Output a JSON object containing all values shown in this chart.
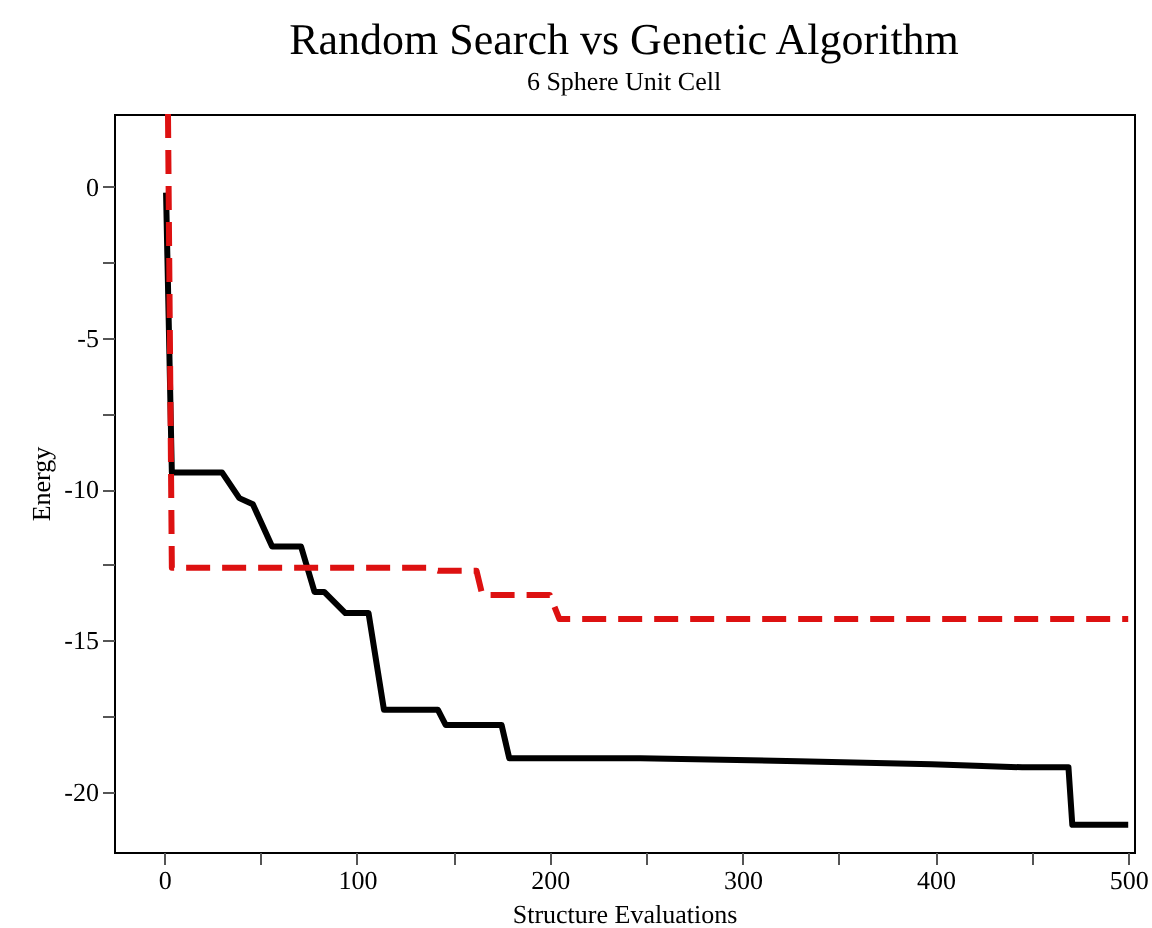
{
  "chart_data": {
    "type": "line",
    "title": "Random Search vs Genetic Algorithm",
    "subtitle": "6 Sphere Unit Cell",
    "xlabel": "Structure Evaluations",
    "ylabel": "Energy",
    "xlim": [
      -26,
      503
    ],
    "ylim": [
      -22,
      2.4
    ],
    "xticks": [
      0,
      {
        "value": 50,
        "label": null
      },
      100,
      {
        "value": 150,
        "label": null
      },
      200,
      {
        "value": 250,
        "label": null
      },
      300,
      {
        "value": 350,
        "label": null
      },
      400,
      {
        "value": 450,
        "label": null
      },
      500
    ],
    "yticks": [
      {
        "value": -20,
        "label": "-20"
      },
      {
        "value": -17.5,
        "label": null
      },
      {
        "value": -15,
        "label": "-15"
      },
      {
        "value": -12.5,
        "label": null
      },
      {
        "value": -10,
        "label": "-10"
      },
      {
        "value": -7.5,
        "label": null
      },
      {
        "value": -5,
        "label": "-5"
      },
      {
        "value": -2.5,
        "label": null
      },
      0
    ],
    "grid": false,
    "series": [
      {
        "color": "#000000",
        "line_style": "solid",
        "x": [
          1,
          4,
          30,
          39,
          46,
          56,
          71,
          78,
          83,
          94,
          106,
          114,
          142,
          146,
          175,
          179,
          247,
          329,
          398,
          445,
          469,
          471,
          500
        ],
        "values": [
          -0.2,
          -9.45,
          -9.45,
          -10.3,
          -10.5,
          -11.9,
          -11.9,
          -13.4,
          -13.4,
          -14.1,
          -14.1,
          -17.3,
          -17.3,
          -17.8,
          -17.8,
          -18.9,
          -18.9,
          -19.0,
          -19.1,
          -19.2,
          -19.2,
          -21.1,
          -21.1
        ]
      },
      {
        "color": "#dd1111",
        "line_style": "dashed",
        "x": [
          2,
          4,
          137,
          142,
          162,
          165,
          200,
          205,
          500
        ],
        "values": [
          2.4,
          -12.6,
          -12.6,
          -12.7,
          -12.7,
          -13.5,
          -13.5,
          -14.3,
          -14.3
        ]
      }
    ]
  }
}
